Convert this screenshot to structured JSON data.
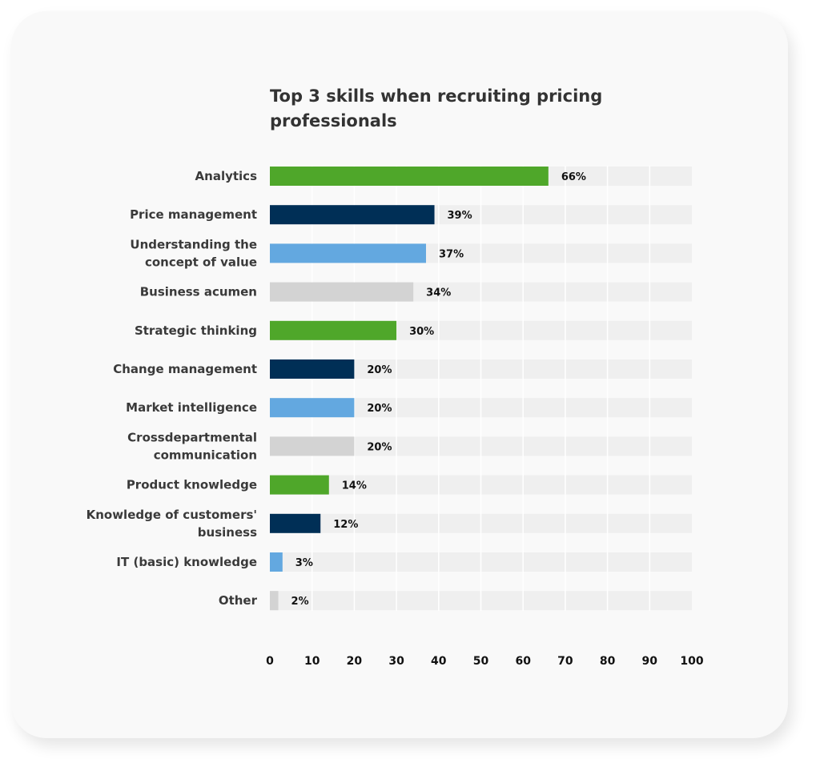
{
  "chart_data": {
    "type": "bar",
    "orientation": "horizontal",
    "title": "Top 3 skills when recruiting pricing professionals",
    "title_lines": [
      "Top 3 skills when recruiting pricing",
      "professionals"
    ],
    "xlabel": "",
    "ylabel": "",
    "xlim": [
      0,
      100
    ],
    "xticks": [
      0,
      10,
      20,
      30,
      40,
      50,
      60,
      70,
      80,
      90,
      100
    ],
    "grid": true,
    "legend": "none",
    "value_suffix": "%",
    "categories": [
      "Analytics",
      "Price management",
      "Understanding the concept of value",
      "Business acumen",
      "Strategic thinking",
      "Change management",
      "Market intelligence",
      "Crossdepartmental communication",
      "Product knowledge",
      "Knowledge of customers' business",
      "IT (basic) knowledge",
      "Other"
    ],
    "category_lines": [
      [
        "Analytics"
      ],
      [
        "Price management"
      ],
      [
        "Understanding the",
        "concept of value"
      ],
      [
        "Business acumen"
      ],
      [
        "Strategic thinking"
      ],
      [
        "Change management"
      ],
      [
        "Market intelligence"
      ],
      [
        "Crossdepartmental",
        "communication"
      ],
      [
        "Product knowledge"
      ],
      [
        "Knowledge of customers'",
        "business"
      ],
      [
        "IT (basic) knowledge"
      ],
      [
        "Other"
      ]
    ],
    "values": [
      66,
      39,
      37,
      34,
      30,
      20,
      20,
      20,
      14,
      12,
      3,
      2
    ],
    "value_labels": [
      "66%",
      "39%",
      "37%",
      "34%",
      "30%",
      "20%",
      "20%",
      "20%",
      "14%",
      "12%",
      "3%",
      "2%"
    ],
    "colors": [
      "#4fa72a",
      "#002f56",
      "#63a8e0",
      "#d3d3d3",
      "#4fa72a",
      "#002f56",
      "#63a8e0",
      "#d3d3d3",
      "#4fa72a",
      "#002f56",
      "#63a8e0",
      "#d3d3d3"
    ],
    "track_color": "#efefef",
    "grid_color": "#ffffff"
  }
}
